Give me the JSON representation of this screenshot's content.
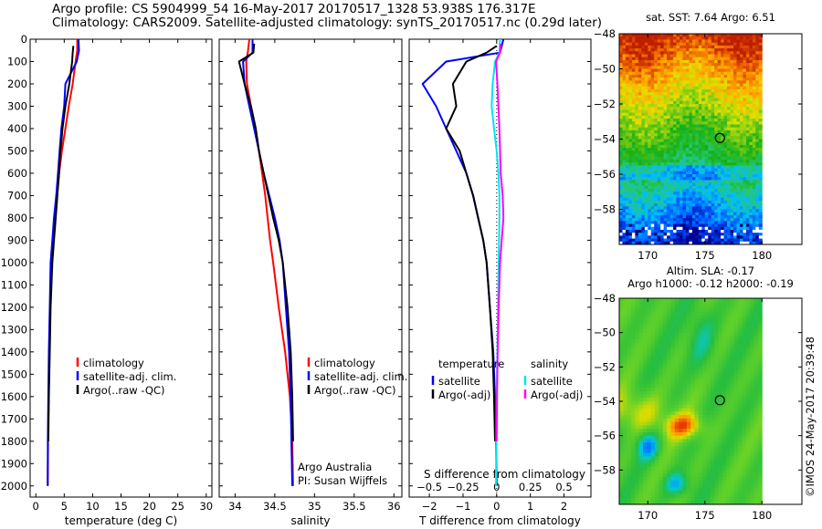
{
  "header": {
    "line1": "Argo profile: CS 5904999_54 16-May-2017 20170517_1328 53.938S 176.317E",
    "line2": "Climatology: CARS2009. Satellite-adjusted climatology: synTS_20170517.nc (0.29d later)"
  },
  "chart_data": [
    {
      "type": "line",
      "title": "",
      "xlabel": "temperature (deg C)",
      "ylabel": "",
      "xlim": [
        -1,
        31
      ],
      "ylim": [
        2050,
        0
      ],
      "xticks": [
        "0",
        "5",
        "10",
        "15",
        "20",
        "25",
        "30"
      ],
      "yticks": [
        "0",
        "100",
        "200",
        "300",
        "400",
        "500",
        "600",
        "700",
        "800",
        "900",
        "1000",
        "1100",
        "1200",
        "1300",
        "1400",
        "1500",
        "1600",
        "1700",
        "1800",
        "1900",
        "2000"
      ],
      "legend": [
        "climatology",
        "satellite-adj. clim.",
        "Argo(..raw -QC)"
      ],
      "legend_placement": "lower-right",
      "series": [
        {
          "name": "climatology",
          "color": "#ff0000",
          "x": [
            7.3,
            7.3,
            7.0,
            6.5,
            5.8,
            5.2,
            4.6,
            4.1,
            3.7,
            3.3,
            3.0,
            2.7,
            2.5,
            2.35,
            2.25,
            2.15,
            2.1
          ],
          "y": [
            0,
            50,
            100,
            200,
            300,
            400,
            500,
            600,
            700,
            800,
            900,
            1000,
            1200,
            1400,
            1600,
            1800,
            2000
          ]
        },
        {
          "name": "satellite-adj. clim.",
          "color": "#0000ff",
          "x": [
            7.5,
            7.6,
            7.2,
            5.2,
            5.0,
            4.5,
            4.2,
            3.9,
            3.6,
            3.2,
            2.9,
            2.6,
            2.45,
            2.3,
            2.2,
            2.12,
            2.08
          ],
          "y": [
            0,
            50,
            100,
            200,
            300,
            400,
            500,
            600,
            700,
            800,
            900,
            1000,
            1200,
            1400,
            1600,
            1800,
            2000
          ]
        },
        {
          "name": "Argo(..raw -QC)",
          "color": "#000000",
          "x": [
            6.6,
            6.5,
            6.4,
            5.9,
            5.2,
            4.7,
            4.5,
            4.3,
            4.1,
            3.8,
            3.5,
            3.2,
            2.9,
            2.6,
            2.45,
            2.3,
            2.2
          ],
          "y": [
            30,
            60,
            100,
            200,
            300,
            400,
            460,
            500,
            600,
            700,
            800,
            900,
            1000,
            1200,
            1400,
            1600,
            1800
          ]
        }
      ]
    },
    {
      "type": "line",
      "title": "",
      "xlabel": "salinity",
      "ylabel": "",
      "xlim": [
        33.8,
        36.1
      ],
      "ylim": [
        2050,
        0
      ],
      "xticks": [
        "34",
        "34.5",
        "35",
        "35.5",
        "36"
      ],
      "legend": [
        "climatology",
        "satellite-adj. clim.",
        "Argo(..raw -QC)"
      ],
      "legend_placement": "lower-right",
      "annotations": [
        "Argo Australia",
        "PI: Susan Wijffels"
      ],
      "series": [
        {
          "name": "climatology",
          "color": "#ff0000",
          "x": [
            34.18,
            34.16,
            34.14,
            34.15,
            34.2,
            34.26,
            34.3,
            34.34,
            34.38,
            34.41,
            34.44,
            34.48,
            34.55,
            34.63,
            34.69,
            34.72,
            34.73
          ],
          "y": [
            0,
            60,
            100,
            200,
            300,
            400,
            500,
            600,
            700,
            800,
            900,
            1000,
            1200,
            1400,
            1600,
            1800,
            2000
          ]
        },
        {
          "name": "satellite-adj. clim.",
          "color": "#0000ff",
          "x": [
            34.22,
            34.22,
            34.1,
            34.12,
            34.18,
            34.24,
            34.3,
            34.36,
            34.43,
            34.5,
            34.56,
            34.6,
            34.64,
            34.68,
            34.7,
            34.71,
            34.72
          ],
          "y": [
            0,
            60,
            100,
            200,
            300,
            400,
            500,
            600,
            700,
            800,
            900,
            1000,
            1200,
            1400,
            1600,
            1800,
            2000
          ]
        },
        {
          "name": "Argo(..raw -QC)",
          "color": "#000000",
          "x": [
            34.24,
            34.23,
            34.05,
            34.12,
            34.2,
            34.26,
            34.3,
            34.36,
            34.42,
            34.48,
            34.55,
            34.6,
            34.66,
            34.7,
            34.72,
            34.73
          ],
          "y": [
            20,
            60,
            100,
            200,
            300,
            400,
            500,
            600,
            700,
            800,
            900,
            1000,
            1200,
            1400,
            1600,
            1800
          ]
        }
      ]
    },
    {
      "type": "line",
      "title": "",
      "xlabel": "T difference from climatology",
      "xlabel_top": "S difference from climatology",
      "ylabel": "",
      "xlim": [
        -2.6,
        2.8
      ],
      "ylim": [
        2050,
        0
      ],
      "xticks": [
        "-2",
        "-1",
        "0",
        "1",
        "2"
      ],
      "xticks_top": [
        "-0.5",
        "-0.25",
        "0",
        "0.25",
        "0.5"
      ],
      "legend_titles": [
        "temperature",
        "salinity"
      ],
      "legend": [
        "satellite",
        "Argo(-adj)",
        "satellite",
        "Argo(-adj)"
      ],
      "legend_placement": "lower-center",
      "series": [
        {
          "name": "satellite",
          "group": "temperature",
          "color": "#0000ff",
          "x": [
            0.2,
            0.1,
            -1.5,
            -2.2,
            -1.8,
            -1.5,
            -1.2,
            -0.9,
            -0.7,
            -0.55,
            -0.4,
            -0.3,
            -0.2,
            -0.1,
            -0.05,
            -0.02,
            0.0
          ],
          "y": [
            0,
            60,
            100,
            200,
            300,
            400,
            500,
            600,
            700,
            800,
            900,
            1000,
            1200,
            1400,
            1600,
            1800,
            2000
          ]
        },
        {
          "name": "Argo(-adj)",
          "group": "temperature",
          "color": "#000000",
          "x": [
            0.0,
            -0.3,
            -0.9,
            -1.3,
            -1.2,
            -1.5,
            -1.1,
            -0.9,
            -0.7,
            -0.55,
            -0.4,
            -0.3,
            -0.2,
            -0.12,
            -0.08,
            -0.05
          ],
          "y": [
            30,
            60,
            100,
            200,
            300,
            400,
            500,
            600,
            700,
            800,
            900,
            1000,
            1200,
            1400,
            1600,
            1800
          ]
        },
        {
          "name": "satellite",
          "group": "salinity",
          "color": "#00e5ee",
          "x": [
            0.1,
            0.08,
            -0.05,
            -0.12,
            -0.15,
            -0.08,
            0.0,
            0.05,
            0.08,
            0.08,
            0.07,
            0.06,
            0.04,
            0.02,
            0.0,
            -0.01,
            -0.02
          ],
          "y": [
            0,
            60,
            100,
            200,
            300,
            400,
            500,
            600,
            700,
            800,
            900,
            1000,
            1200,
            1400,
            1600,
            1800,
            2000
          ]
        },
        {
          "name": "Argo(-adj)",
          "group": "salinity",
          "color": "#ff00ff",
          "x": [
            0.12,
            0.1,
            -0.02,
            0.02,
            0.05,
            0.08,
            0.1,
            0.12,
            0.18,
            0.2,
            0.15,
            0.1,
            0.06,
            0.03,
            0.01,
            0.0
          ],
          "y": [
            20,
            60,
            100,
            200,
            300,
            400,
            500,
            600,
            700,
            800,
            900,
            1000,
            1200,
            1400,
            1600,
            1800
          ]
        }
      ]
    },
    {
      "type": "heatmap",
      "title": "sat. SST: 7.64 Argo: 6.51",
      "xlim": [
        167.5,
        183.5
      ],
      "ylim": [
        -60,
        -48
      ],
      "xticks": [
        "170",
        "175",
        "180"
      ],
      "yticks": [
        "-48",
        "-50",
        "-52",
        "-54",
        "-56",
        "-58"
      ],
      "data_extent": [
        167.5,
        180,
        -60,
        -48
      ],
      "marker": {
        "lon": 176.317,
        "lat": -53.938
      }
    },
    {
      "type": "heatmap",
      "title": "Altim. SLA: -0.17",
      "subtitle": "Argo h1000: -0.12 h2000: -0.19",
      "xlim": [
        167.5,
        183.5
      ],
      "ylim": [
        -60,
        -48
      ],
      "xticks": [
        "170",
        "175",
        "180"
      ],
      "yticks": [
        "-48",
        "-50",
        "-52",
        "-54",
        "-56",
        "-58"
      ],
      "data_extent": [
        167.5,
        180,
        -60,
        -48
      ],
      "marker": {
        "lon": 176.317,
        "lat": -53.938
      }
    }
  ],
  "footer": {
    "credit": "©IMOS 24-May-2017 20:39:48"
  }
}
